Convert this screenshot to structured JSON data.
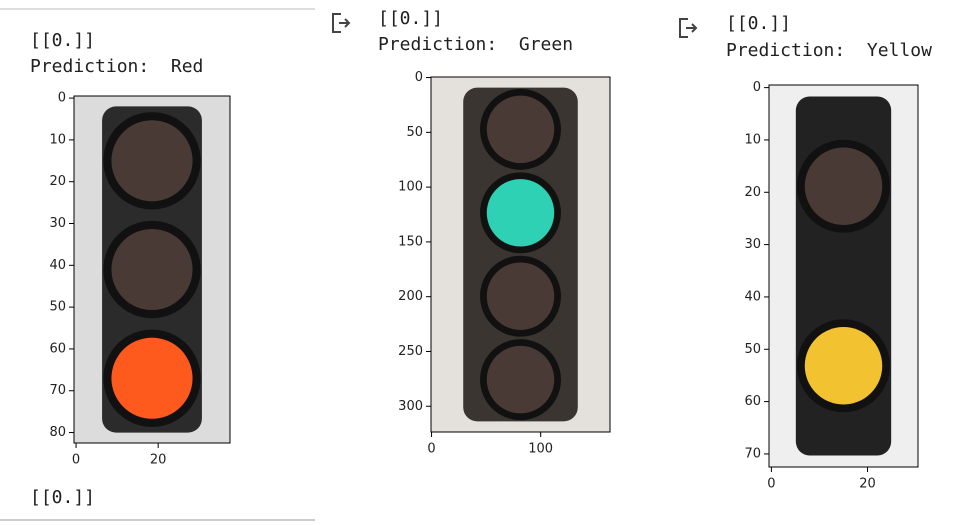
{
  "panels": [
    {
      "output": "[[0.]]",
      "prediction": "Prediction:  Red",
      "xlim": [
        -0.5,
        37.5
      ],
      "ylim": [
        82.5,
        -0.5
      ],
      "xticks": [
        0,
        20
      ],
      "yticks": [
        0,
        10,
        20,
        30,
        40,
        50,
        60,
        70,
        80
      ]
    },
    {
      "output": "[[0.]]",
      "prediction": "Prediction:  Green",
      "xlim": [
        -0.5,
        163.5
      ],
      "ylim": [
        323.5,
        -0.5
      ],
      "xticks": [
        0,
        100
      ],
      "yticks": [
        0,
        50,
        100,
        150,
        200,
        250,
        300
      ]
    },
    {
      "output": "[[0.]]",
      "prediction": "Prediction:  Yellow",
      "xlim": [
        -0.5,
        30.5
      ],
      "ylim": [
        72.5,
        -0.5
      ],
      "xticks": [
        0,
        20
      ],
      "yticks": [
        0,
        10,
        20,
        30,
        40,
        50,
        60,
        70
      ]
    }
  ],
  "footer_output": "[[0.]]"
}
